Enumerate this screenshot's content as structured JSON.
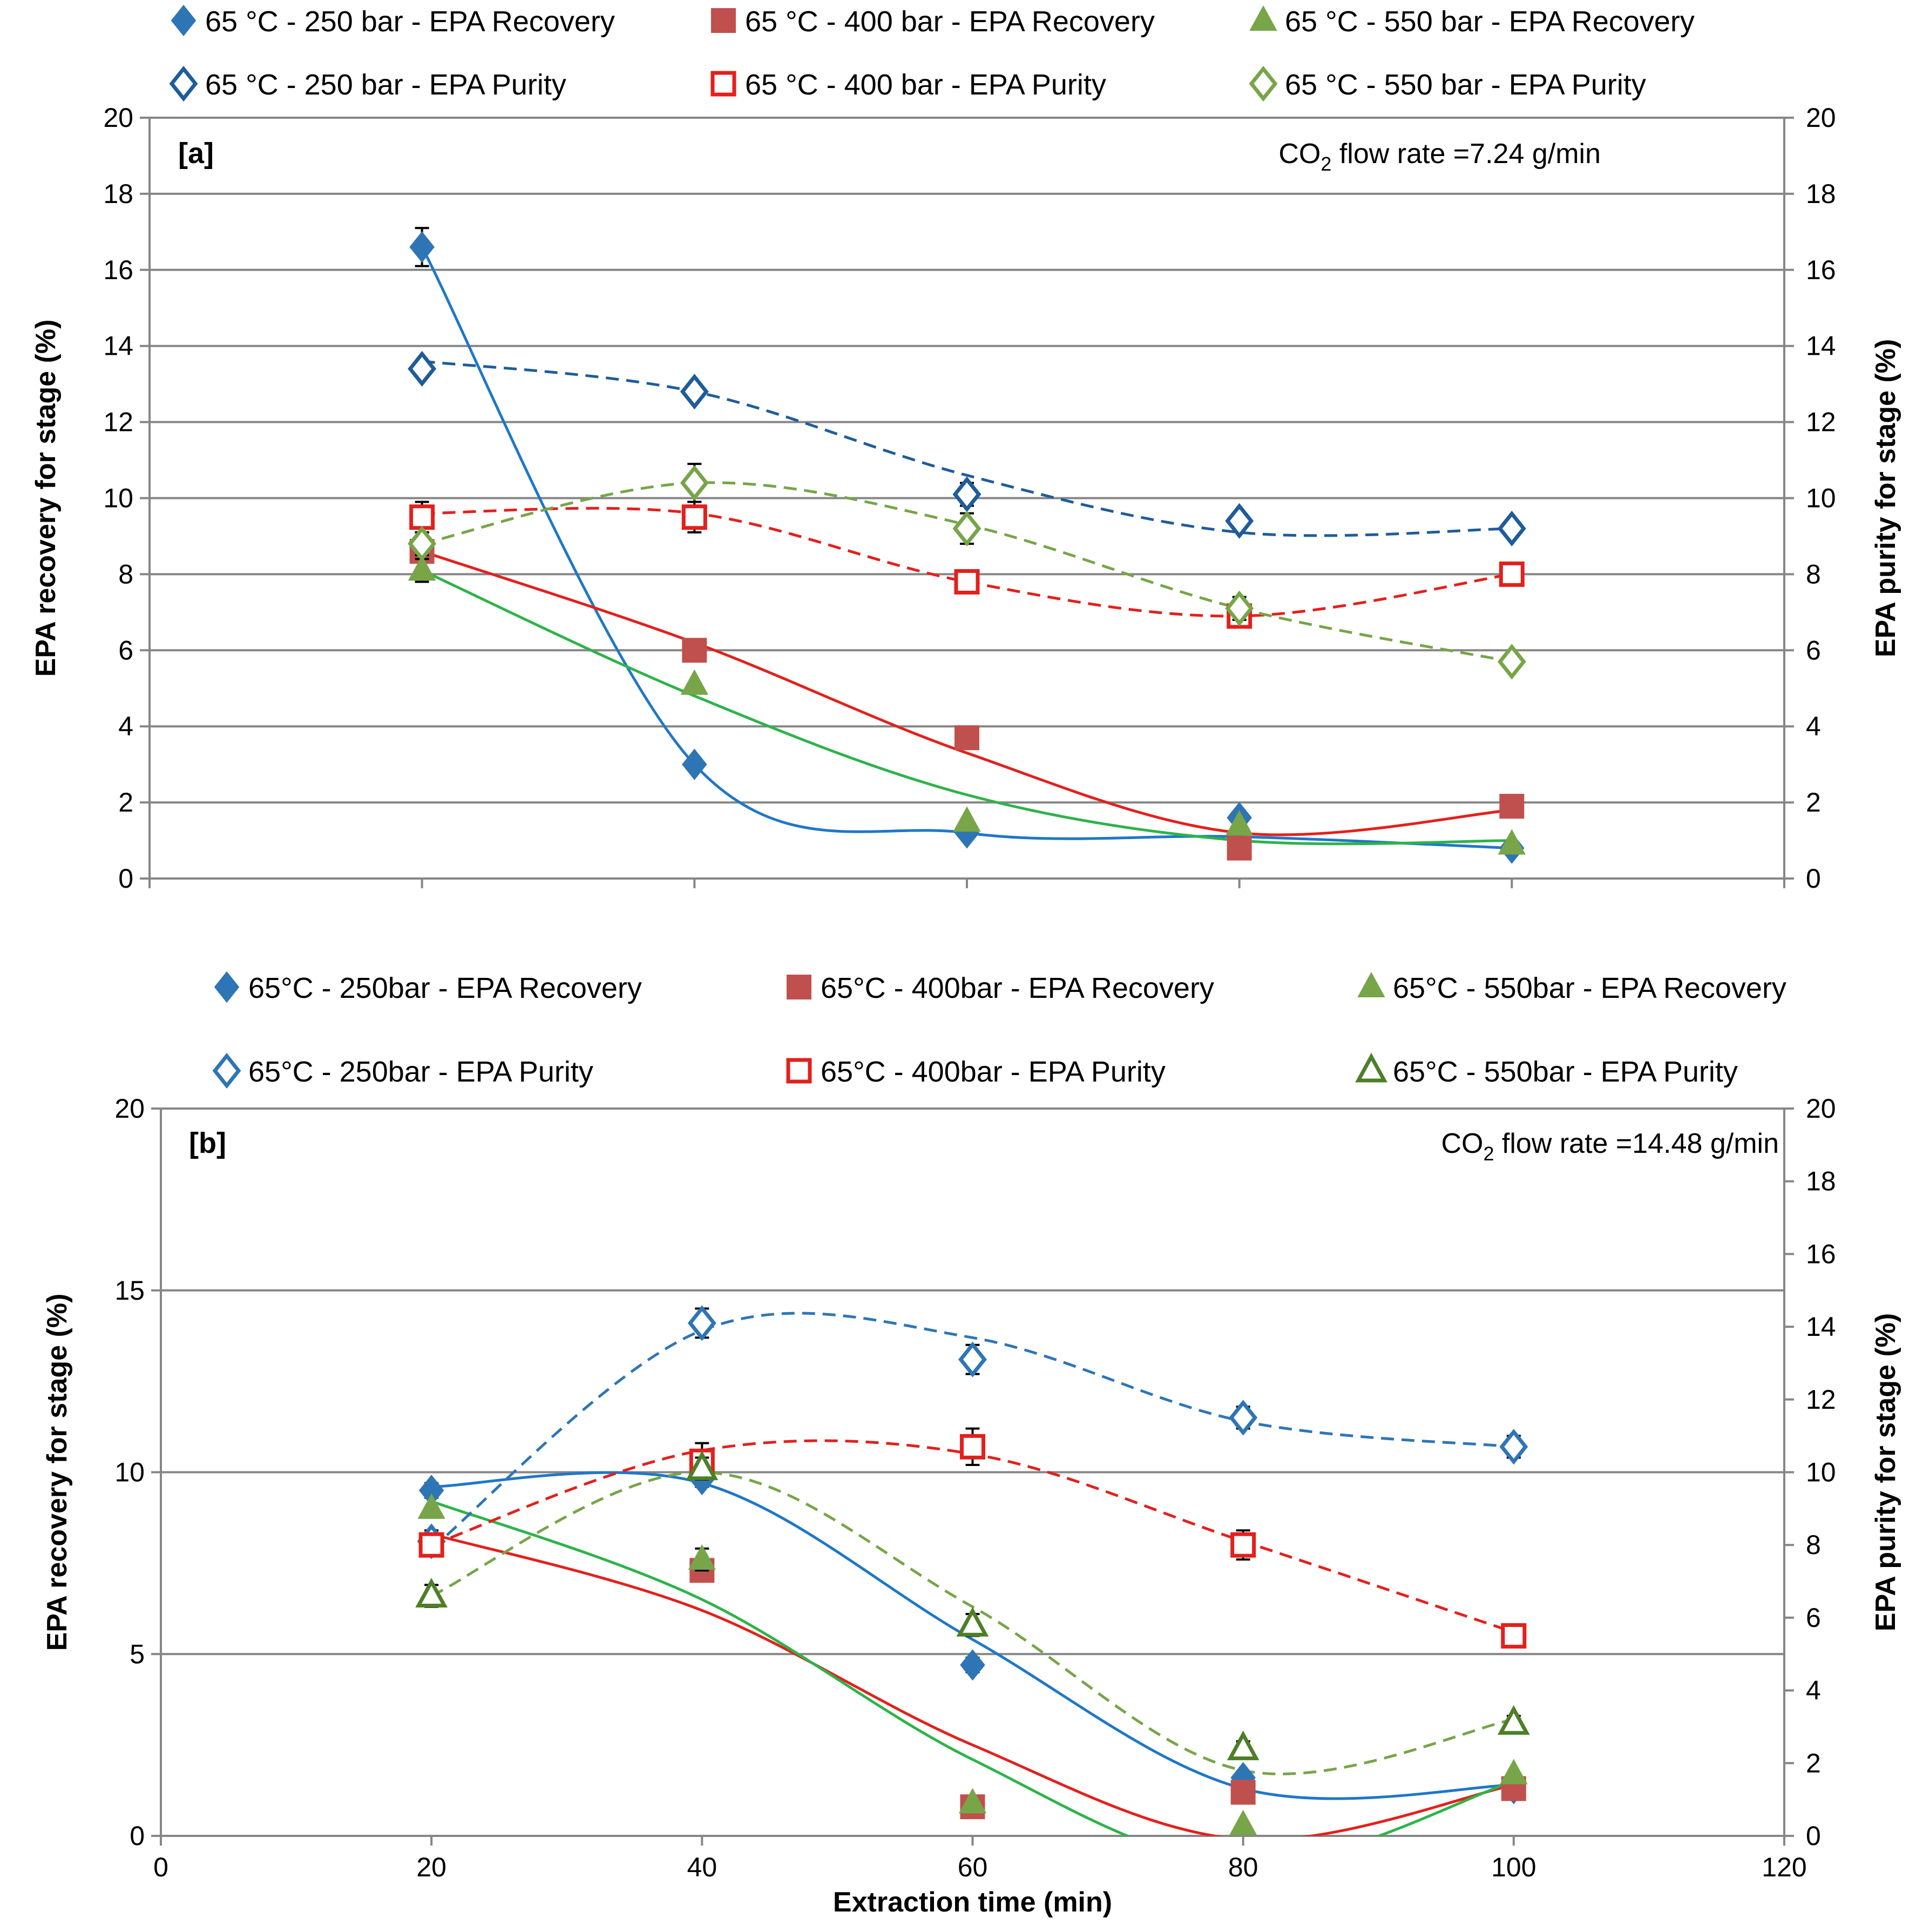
{
  "colors": {
    "blue": "#2E75B6",
    "darkblue": "#1F5C99",
    "red": "#C0504D",
    "redline": "#E3201C",
    "green": "#77A548",
    "greenline": "#2DB34A",
    "grid": "#868686"
  },
  "chart_data": [
    {
      "id": "a",
      "type": "scatter",
      "panel_label": "[a]",
      "annotation_prefix": "CO",
      "annotation_subscript": "2",
      "annotation_suffix": " flow rate =7.24 g/min",
      "xlabel": "",
      "ylabel_left": "EPA recovery for stage (%)",
      "ylabel_right": "EPA purity for stage (%)",
      "xlim": [
        20,
        100
      ],
      "ylim": [
        0,
        20
      ],
      "y_ticks": [
        "0",
        "2",
        "4",
        "6",
        "8",
        "10",
        "12",
        "14",
        "16",
        "18",
        "20"
      ],
      "y2_ticks": [
        "0",
        "2",
        "4",
        "6",
        "8",
        "10",
        "12",
        "14",
        "16",
        "18",
        "20"
      ],
      "legend_position": "top",
      "legend": [
        [
          "65 °C -  250 bar - EPA Recovery",
          "65 °C -  400 bar - EPA Recovery",
          "65 °C -  550 bar - EPA Recovery"
        ],
        [
          "65 °C - 250 bar - EPA Purity",
          "65 °C -  400 bar - EPA Purity",
          "65 °C -  550 bar - EPA Purity"
        ]
      ],
      "x": [
        20,
        40,
        60,
        80,
        100
      ],
      "series": [
        {
          "name": "65 °C -  250 bar - EPA Recovery",
          "marker": "diamond",
          "filled": true,
          "color": "#2E75B6",
          "values": [
            16.6,
            3.0,
            1.2,
            1.6,
            0.8
          ],
          "err": [
            0.5,
            0,
            0,
            0,
            0
          ],
          "trend": [
            16.6,
            3.0,
            1.2,
            1.1,
            0.8
          ],
          "dashed": false,
          "linecolor": "#1F77C8"
        },
        {
          "name": "65 °C -  400 bar - EPA Recovery",
          "marker": "square",
          "filled": true,
          "color": "#C0504D",
          "values": [
            8.6,
            6.0,
            3.7,
            0.8,
            1.9
          ],
          "err": [
            0,
            0,
            0,
            0,
            0
          ],
          "trend": [
            8.6,
            6.2,
            3.3,
            1.2,
            1.8
          ],
          "dashed": false,
          "linecolor": "#E3201C"
        },
        {
          "name": "65 °C -  550 bar - EPA Recovery",
          "marker": "triangle",
          "filled": true,
          "color": "#77A548",
          "values": [
            8.1,
            5.1,
            1.5,
            1.4,
            0.9
          ],
          "err": [
            0.3,
            0,
            0,
            0,
            0
          ],
          "trend": [
            8.1,
            4.8,
            2.2,
            1.0,
            1.0
          ],
          "dashed": false,
          "linecolor": "#2DB34A"
        },
        {
          "name": "65 °C - 250 bar - EPA Purity",
          "marker": "diamond",
          "filled": false,
          "color": "#1F5C99",
          "values": [
            13.4,
            12.8,
            10.1,
            9.4,
            9.2
          ],
          "err": [
            0.2,
            0.2,
            0.3,
            0.2,
            0.2
          ],
          "trend": [
            13.6,
            12.8,
            10.6,
            9.1,
            9.2
          ],
          "dashed": true,
          "linecolor": "#1F5C99"
        },
        {
          "name": "65 °C -  400 bar - EPA Purity",
          "marker": "square",
          "filled": false,
          "color": "#E3201C",
          "values": [
            9.5,
            9.5,
            7.8,
            6.9,
            8.0
          ],
          "err": [
            0.4,
            0.4,
            0.3,
            0.3,
            0.3
          ],
          "trend": [
            9.6,
            9.6,
            7.8,
            6.9,
            8.0
          ],
          "dashed": true,
          "linecolor": "#E3201C"
        },
        {
          "name": "65 °C -  550 bar - EPA Purity",
          "marker": "diamond",
          "filled": false,
          "color": "#77A548",
          "values": [
            8.8,
            10.4,
            9.2,
            7.1,
            5.7
          ],
          "err": [
            0.3,
            0.5,
            0.4,
            0.3,
            0.2
          ],
          "trend": [
            8.8,
            10.4,
            9.3,
            7.1,
            5.7
          ],
          "dashed": true,
          "linecolor": "#77A548"
        }
      ]
    },
    {
      "id": "b",
      "type": "scatter",
      "panel_label": "[b]",
      "annotation_prefix": "CO",
      "annotation_subscript": "2",
      "annotation_suffix": " flow rate =14.48 g/min",
      "xlabel": "Extraction time (min)",
      "ylabel_left": "EPA recovery for stage (%)",
      "ylabel_right": "EPA purity for stage (%)",
      "xlim": [
        0,
        120
      ],
      "ylim": [
        0,
        20
      ],
      "x_ticks": [
        "0",
        "20",
        "40",
        "60",
        "80",
        "100",
        "120"
      ],
      "y_ticks": [
        "0",
        "5",
        "10",
        "15",
        "20"
      ],
      "y2_ticks": [
        "0",
        "2",
        "4",
        "6",
        "8",
        "10",
        "12",
        "14",
        "16",
        "18",
        "20"
      ],
      "legend_position": "top",
      "legend": [
        [
          "65°C - 250bar - EPA Recovery",
          "65°C - 400bar - EPA Recovery",
          "65°C - 550bar - EPA Recovery"
        ],
        [
          "65°C - 250bar - EPA Purity",
          "65°C - 400bar - EPA Purity",
          "65°C - 550bar - EPA Purity"
        ]
      ],
      "x": [
        20,
        40,
        60,
        80,
        100
      ],
      "series": [
        {
          "name": "65°C - 250bar - EPA Recovery",
          "marker": "diamond",
          "filled": true,
          "color": "#2E75B6",
          "values": [
            9.5,
            9.8,
            4.7,
            1.6,
            1.3
          ],
          "err": [
            0.2,
            0.2,
            0.2,
            0,
            0
          ],
          "trend": [
            9.6,
            9.7,
            5.4,
            1.3,
            1.4
          ],
          "dashed": false,
          "linecolor": "#1F77C8"
        },
        {
          "name": "65°C - 400bar - EPA Recovery",
          "marker": "square",
          "filled": true,
          "color": "#C0504D",
          "values": [
            8.0,
            7.3,
            0.8,
            1.2,
            1.3
          ],
          "err": [
            0,
            0,
            0,
            0,
            0
          ],
          "trend": [
            8.3,
            6.2,
            2.5,
            -0.1,
            1.4
          ],
          "dashed": false,
          "linecolor": "#E3201C"
        },
        {
          "name": "65°C - 550bar - EPA Recovery",
          "marker": "triangle",
          "filled": true,
          "color": "#77A548",
          "values": [
            9.0,
            7.6,
            0.9,
            0.3,
            1.7
          ],
          "err": [
            0,
            0.3,
            0,
            0,
            0
          ],
          "trend": [
            9.2,
            6.5,
            2.1,
            -0.8,
            1.5
          ],
          "dashed": false,
          "linecolor": "#2DB34A"
        },
        {
          "name": "65°C - 250bar - EPA Purity",
          "marker": "diamond",
          "filled": false,
          "color": "#2E75B6",
          "values": [
            8.1,
            14.1,
            13.1,
            11.5,
            10.7
          ],
          "err": [
            0.3,
            0.4,
            0.4,
            0.3,
            0.3
          ],
          "trend": [
            7.9,
            13.9,
            13.7,
            11.4,
            10.7
          ],
          "dashed": true,
          "linecolor": "#2E75B6"
        },
        {
          "name": "65°C - 400bar - EPA Purity",
          "marker": "square",
          "filled": false,
          "color": "#E3201C",
          "values": [
            8.0,
            10.3,
            10.7,
            8.0,
            5.5
          ],
          "err": [
            0.3,
            0.5,
            0.5,
            0.4,
            0.3
          ],
          "trend": [
            8.0,
            10.6,
            10.5,
            8.1,
            5.6
          ],
          "dashed": true,
          "linecolor": "#E3201C"
        },
        {
          "name": "65°C - 550bar - EPA Purity",
          "marker": "triangle",
          "filled": false,
          "color": "#4E7F28",
          "values": [
            6.6,
            10.1,
            5.8,
            2.4,
            3.1
          ],
          "err": [
            0.3,
            0.3,
            0.3,
            0.2,
            0.2
          ],
          "trend": [
            6.6,
            10.0,
            6.3,
            1.8,
            3.2
          ],
          "dashed": true,
          "linecolor": "#77A548"
        }
      ]
    }
  ]
}
